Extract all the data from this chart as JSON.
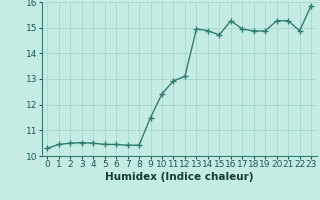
{
  "x": [
    0,
    1,
    2,
    3,
    4,
    5,
    6,
    7,
    8,
    9,
    10,
    11,
    12,
    13,
    14,
    15,
    16,
    17,
    18,
    19,
    20,
    21,
    22,
    23
  ],
  "y": [
    10.3,
    10.45,
    10.5,
    10.52,
    10.5,
    10.45,
    10.45,
    10.42,
    10.42,
    11.5,
    12.42,
    12.93,
    13.1,
    14.95,
    14.88,
    14.72,
    15.27,
    14.95,
    14.87,
    14.87,
    15.27,
    15.27,
    14.88,
    15.85
  ],
  "line_color": "#2e7d6e",
  "marker": "+",
  "marker_size": 4,
  "bg_color": "#c5ece4",
  "grid_color": "#a8d8cf",
  "xlabel": "Humidex (Indice chaleur)",
  "xlim": [
    -0.5,
    23.5
  ],
  "ylim": [
    10,
    16
  ],
  "yticks": [
    10,
    11,
    12,
    13,
    14,
    15,
    16
  ],
  "xticks": [
    0,
    1,
    2,
    3,
    4,
    5,
    6,
    7,
    8,
    9,
    10,
    11,
    12,
    13,
    14,
    15,
    16,
    17,
    18,
    19,
    20,
    21,
    22,
    23
  ],
  "xlabel_fontsize": 7.5,
  "tick_fontsize": 6.5,
  "linewidth": 1.0
}
